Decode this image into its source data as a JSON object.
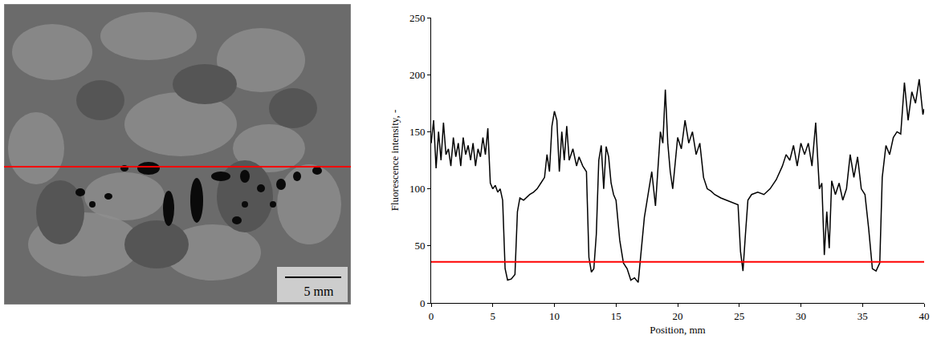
{
  "chart_data": {
    "type": "line",
    "x_label": "Position, mm",
    "y_label": "Fluorescence intensity, -",
    "color": "#000000",
    "grid": false,
    "xlim": [
      0,
      40
    ],
    "xticks": [
      0,
      5,
      10,
      15,
      20,
      25,
      30,
      35,
      40
    ],
    "ylim": [
      0,
      250
    ],
    "yticks": [
      0,
      50,
      100,
      150,
      200,
      250
    ],
    "reference_line": {
      "value": 36,
      "color": "#ff0000"
    },
    "x": [
      0,
      0.2,
      0.4,
      0.6,
      0.8,
      1,
      1.2,
      1.4,
      1.6,
      1.8,
      2,
      2.2,
      2.4,
      2.6,
      2.8,
      3,
      3.2,
      3.4,
      3.6,
      3.8,
      4,
      4.2,
      4.4,
      4.6,
      4.8,
      5,
      5.2,
      5.4,
      5.6,
      5.8,
      6,
      6.2,
      6.5,
      6.8,
      7,
      7.2,
      7.5,
      7.8,
      8,
      8.3,
      8.6,
      8.9,
      9.2,
      9.4,
      9.6,
      9.8,
      10,
      10.2,
      10.4,
      10.6,
      10.8,
      11,
      11.2,
      11.5,
      11.8,
      12,
      12.3,
      12.6,
      12.8,
      13,
      13.2,
      13.4,
      13.6,
      13.8,
      14,
      14.2,
      14.4,
      14.6,
      14.8,
      15,
      15.3,
      15.6,
      15.9,
      16.2,
      16.5,
      16.8,
      17,
      17.3,
      17.6,
      17.9,
      18.2,
      18.4,
      18.6,
      18.8,
      19,
      19.2,
      19.4,
      19.6,
      19.8,
      20,
      20.3,
      20.6,
      20.9,
      21.2,
      21.5,
      21.8,
      22.1,
      22.4,
      22.7,
      23,
      23.5,
      24,
      24.5,
      24.9,
      25.1,
      25.3,
      25.5,
      25.7,
      26,
      26.5,
      27,
      27.5,
      28,
      28.5,
      28.8,
      29.1,
      29.4,
      29.7,
      30,
      30.3,
      30.6,
      30.9,
      31.2,
      31.5,
      31.7,
      31.9,
      32.1,
      32.3,
      32.5,
      32.8,
      33.1,
      33.4,
      33.7,
      34,
      34.3,
      34.6,
      34.9,
      35.2,
      35.5,
      35.8,
      36.1,
      36.4,
      36.6,
      36.9,
      37.2,
      37.5,
      37.8,
      38.1,
      38.4,
      38.7,
      39,
      39.3,
      39.6,
      39.9,
      40
    ],
    "values": [
      140,
      160,
      118,
      150,
      125,
      158,
      130,
      135,
      120,
      145,
      128,
      140,
      120,
      145,
      130,
      138,
      125,
      140,
      120,
      135,
      128,
      145,
      130,
      153,
      105,
      100,
      103,
      97,
      100,
      90,
      30,
      20,
      21,
      25,
      80,
      92,
      90,
      93,
      95,
      97,
      100,
      105,
      110,
      130,
      115,
      155,
      168,
      160,
      115,
      150,
      125,
      155,
      125,
      135,
      120,
      128,
      120,
      115,
      40,
      27,
      30,
      60,
      125,
      138,
      100,
      137,
      128,
      105,
      95,
      90,
      55,
      35,
      30,
      20,
      22,
      18,
      40,
      75,
      95,
      115,
      85,
      120,
      150,
      140,
      187,
      140,
      115,
      100,
      125,
      145,
      135,
      160,
      140,
      150,
      130,
      140,
      110,
      100,
      98,
      95,
      92,
      90,
      88,
      86,
      45,
      28,
      60,
      90,
      95,
      97,
      95,
      100,
      108,
      120,
      130,
      125,
      138,
      120,
      140,
      130,
      140,
      120,
      158,
      100,
      105,
      42,
      80,
      48,
      107,
      95,
      105,
      90,
      100,
      130,
      110,
      128,
      100,
      95,
      65,
      30,
      28,
      35,
      110,
      138,
      130,
      145,
      150,
      148,
      193,
      160,
      185,
      175,
      196,
      165,
      170
    ]
  },
  "micrograph": {
    "scale_bar": "5 mm",
    "line_color": "#ff0000"
  }
}
